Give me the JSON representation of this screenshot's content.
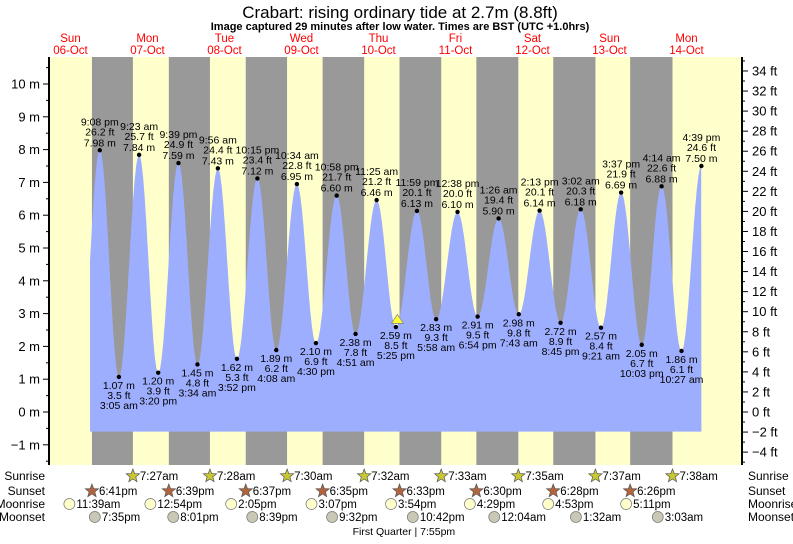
{
  "title": "Crabart: rising  ordinary tide at 2.7m (8.8ft)",
  "subtitle": "Image captured 29 minutes after low water. Times are BST (UTC +1.0hrs)",
  "colors": {
    "day": "#ffffcc",
    "night": "#999999",
    "water": "#9eaeff",
    "day_label": "#ff0000",
    "sunrise_star": "#c8c832",
    "sunset_star": "#b4643c",
    "moonrise": "#ffffcc",
    "moonset": "#c8c8b4",
    "current_marker": "#ffff33"
  },
  "chart_data": {
    "type": "area",
    "ylim_m": [
      -1.6,
      10.8
    ],
    "left_axis": {
      "unit": "m",
      "ticks": [
        -1,
        0,
        1,
        2,
        3,
        4,
        5,
        6,
        7,
        8,
        9,
        10
      ],
      "tick_labels": [
        "−1 m",
        "0 m",
        "1 m",
        "2 m",
        "3 m",
        "4 m",
        "5 m",
        "6 m",
        "7 m",
        "8 m",
        "9 m",
        "10 m"
      ]
    },
    "right_axis": {
      "unit": "ft",
      "ticks": [
        -4,
        -2,
        0,
        2,
        4,
        6,
        8,
        10,
        12,
        14,
        16,
        18,
        20,
        22,
        24,
        26,
        28,
        30,
        32,
        34
      ],
      "tick_labels": [
        "−4 ft",
        "−2 ft",
        "0 ft",
        "2 ft",
        "4 ft",
        "6 ft",
        "8 ft",
        "10 ft",
        "12 ft",
        "14 ft",
        "16 ft",
        "18 ft",
        "20 ft",
        "22 ft",
        "24 ft",
        "26 ft",
        "28 ft",
        "30 ft",
        "32 ft",
        "34 ft"
      ]
    },
    "days": [
      {
        "day": "Sun",
        "date": "06-Oct"
      },
      {
        "day": "Mon",
        "date": "07-Oct"
      },
      {
        "day": "Tue",
        "date": "08-Oct"
      },
      {
        "day": "Wed",
        "date": "09-Oct"
      },
      {
        "day": "Thu",
        "date": "10-Oct"
      },
      {
        "day": "Fri",
        "date": "11-Oct"
      },
      {
        "day": "Sat",
        "date": "12-Oct"
      },
      {
        "day": "Sun",
        "date": "13-Oct"
      },
      {
        "day": "Mon",
        "date": "14-Oct"
      }
    ],
    "tides": [
      {
        "date": "06-Oct",
        "type": "high",
        "time": "9:08 pm",
        "m": 7.98,
        "ft": 26.2
      },
      {
        "date": "07-Oct",
        "type": "low",
        "time": "3:05 am",
        "m": 1.07,
        "ft": 3.5
      },
      {
        "date": "07-Oct",
        "type": "high",
        "time": "9:23 am",
        "m": 7.84,
        "ft": 25.7
      },
      {
        "date": "07-Oct",
        "type": "low",
        "time": "3:20 pm",
        "m": 1.2,
        "ft": 3.9
      },
      {
        "date": "07-Oct",
        "type": "high",
        "time": "9:39 pm",
        "m": 7.59,
        "ft": 24.9
      },
      {
        "date": "08-Oct",
        "type": "low",
        "time": "3:34 am",
        "m": 1.45,
        "ft": 4.8
      },
      {
        "date": "08-Oct",
        "type": "high",
        "time": "9:56 am",
        "m": 7.43,
        "ft": 24.4
      },
      {
        "date": "08-Oct",
        "type": "low",
        "time": "3:52 pm",
        "m": 1.62,
        "ft": 5.3
      },
      {
        "date": "08-Oct",
        "type": "high",
        "time": "10:15 pm",
        "m": 7.12,
        "ft": 23.4
      },
      {
        "date": "09-Oct",
        "type": "low",
        "time": "4:08 am",
        "m": 1.89,
        "ft": 6.2
      },
      {
        "date": "09-Oct",
        "type": "high",
        "time": "10:34 am",
        "m": 6.95,
        "ft": 22.8
      },
      {
        "date": "09-Oct",
        "type": "low",
        "time": "4:30 pm",
        "m": 2.1,
        "ft": 6.9
      },
      {
        "date": "09-Oct",
        "type": "high",
        "time": "10:58 pm",
        "m": 6.6,
        "ft": 21.7
      },
      {
        "date": "10-Oct",
        "type": "low",
        "time": "4:51 am",
        "m": 2.38,
        "ft": 7.8
      },
      {
        "date": "10-Oct",
        "type": "high",
        "time": "11:25 am",
        "m": 6.46,
        "ft": 21.2
      },
      {
        "date": "10-Oct",
        "type": "low",
        "time": "5:25 pm",
        "m": 2.59,
        "ft": 8.5
      },
      {
        "date": "10-Oct",
        "type": "high",
        "time": "11:59 pm",
        "m": 6.13,
        "ft": 20.1
      },
      {
        "date": "11-Oct",
        "type": "low",
        "time": "5:58 am",
        "m": 2.83,
        "ft": 9.3
      },
      {
        "date": "11-Oct",
        "type": "high",
        "time": "12:38 pm",
        "m": 6.1,
        "ft": 20.0
      },
      {
        "date": "11-Oct",
        "type": "low",
        "time": "6:54 pm",
        "m": 2.91,
        "ft": 9.5
      },
      {
        "date": "12-Oct",
        "type": "high",
        "time": "1:26 am",
        "m": 5.9,
        "ft": 19.4
      },
      {
        "date": "12-Oct",
        "type": "low",
        "time": "7:43 am",
        "m": 2.98,
        "ft": 9.8
      },
      {
        "date": "12-Oct",
        "type": "high",
        "time": "2:13 pm",
        "m": 6.14,
        "ft": 20.1
      },
      {
        "date": "12-Oct",
        "type": "low",
        "time": "8:45 pm",
        "m": 2.72,
        "ft": 8.9
      },
      {
        "date": "13-Oct",
        "type": "high",
        "time": "3:02 am",
        "m": 6.18,
        "ft": 20.3
      },
      {
        "date": "13-Oct",
        "type": "low",
        "time": "9:21 am",
        "m": 2.57,
        "ft": 8.4
      },
      {
        "date": "13-Oct",
        "type": "high",
        "time": "3:37 pm",
        "m": 6.69,
        "ft": 21.9
      },
      {
        "date": "13-Oct",
        "type": "low",
        "time": "10:03 pm",
        "m": 2.05,
        "ft": 6.7
      },
      {
        "date": "14-Oct",
        "type": "high",
        "time": "4:14 am",
        "m": 6.88,
        "ft": 22.6
      },
      {
        "date": "14-Oct",
        "type": "low",
        "time": "10:27 am",
        "m": 1.86,
        "ft": 6.1
      },
      {
        "date": "14-Oct",
        "type": "high",
        "time": "4:39 pm",
        "m": 7.5,
        "ft": 24.6
      }
    ],
    "current": {
      "height_m": 2.7,
      "minutes_after_low": 29
    }
  },
  "almanac": {
    "row_labels": {
      "sunrise": "Sunrise",
      "sunset": "Sunset",
      "moonrise": "Moonrise",
      "moonset": "Moonset"
    },
    "sunrise": [
      {
        "date": "07-Oct",
        "time": "7:27am"
      },
      {
        "date": "08-Oct",
        "time": "7:28am"
      },
      {
        "date": "09-Oct",
        "time": "7:30am"
      },
      {
        "date": "10-Oct",
        "time": "7:32am"
      },
      {
        "date": "11-Oct",
        "time": "7:33am"
      },
      {
        "date": "12-Oct",
        "time": "7:35am"
      },
      {
        "date": "13-Oct",
        "time": "7:37am"
      },
      {
        "date": "14-Oct",
        "time": "7:38am"
      }
    ],
    "sunset": [
      {
        "date": "06-Oct",
        "time": "6:41pm"
      },
      {
        "date": "07-Oct",
        "time": "6:39pm"
      },
      {
        "date": "08-Oct",
        "time": "6:37pm"
      },
      {
        "date": "09-Oct",
        "time": "6:35pm"
      },
      {
        "date": "10-Oct",
        "time": "6:33pm"
      },
      {
        "date": "11-Oct",
        "time": "6:30pm"
      },
      {
        "date": "12-Oct",
        "time": "6:28pm"
      },
      {
        "date": "13-Oct",
        "time": "6:26pm"
      }
    ],
    "moonrise": [
      {
        "date": "06-Oct",
        "time": "11:39am"
      },
      {
        "date": "07-Oct",
        "time": "12:54pm"
      },
      {
        "date": "08-Oct",
        "time": "2:05pm"
      },
      {
        "date": "09-Oct",
        "time": "3:07pm"
      },
      {
        "date": "10-Oct",
        "time": "3:54pm"
      },
      {
        "date": "11-Oct",
        "time": "4:29pm"
      },
      {
        "date": "12-Oct",
        "time": "4:53pm"
      },
      {
        "date": "13-Oct",
        "time": "5:11pm"
      }
    ],
    "moonset": [
      {
        "date": "06-Oct",
        "time": "7:35pm"
      },
      {
        "date": "07-Oct",
        "time": "8:01pm"
      },
      {
        "date": "08-Oct",
        "time": "8:39pm"
      },
      {
        "date": "09-Oct",
        "time": "9:32pm"
      },
      {
        "date": "10-Oct",
        "time": "10:42pm"
      },
      {
        "date": "12-Oct",
        "time": "12:04am"
      },
      {
        "date": "13-Oct",
        "time": "1:32am"
      },
      {
        "date": "14-Oct",
        "time": "3:03am"
      }
    ],
    "moon_phase": {
      "date": "10-Oct",
      "time": "7:55pm",
      "label": "First Quarter | 7:55pm"
    }
  }
}
